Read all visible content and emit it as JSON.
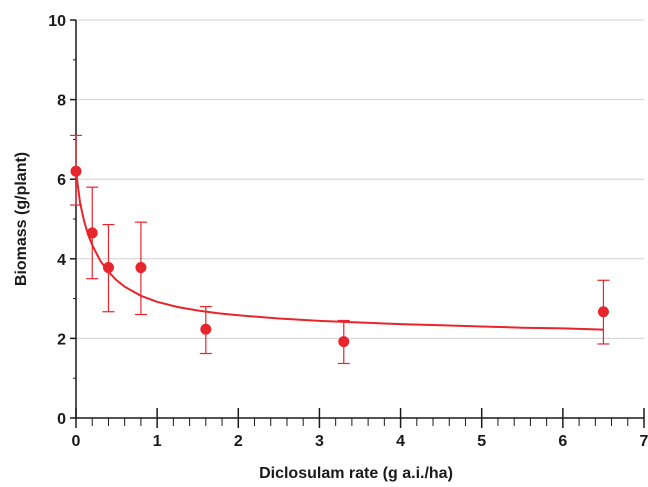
{
  "chart_data": {
    "type": "scatter",
    "title": "",
    "xlabel": "Diclosulam rate (g a.i./ha)",
    "ylabel": "Biomass (g/plant)",
    "xlim": [
      0,
      7
    ],
    "ylim": [
      0,
      10
    ],
    "x_ticks": [
      "0",
      "1",
      "2",
      "3",
      "4",
      "5",
      "6",
      "7"
    ],
    "y_ticks": [
      "0",
      "2",
      "4",
      "6",
      "8",
      "10"
    ],
    "x_minor_step": 0.2,
    "grid": "horizontal",
    "legend": "none",
    "series": [
      {
        "points": [
          {
            "x": 0.0,
            "y": 6.2,
            "err_low": 5.35,
            "err_high": 7.1
          },
          {
            "x": 0.2,
            "y": 4.65,
            "err_low": 3.5,
            "err_high": 5.8
          },
          {
            "x": 0.4,
            "y": 3.78,
            "err_low": 2.67,
            "err_high": 4.86
          },
          {
            "x": 0.8,
            "y": 3.78,
            "err_low": 2.6,
            "err_high": 4.92
          },
          {
            "x": 1.6,
            "y": 2.23,
            "err_low": 1.62,
            "err_high": 2.8
          },
          {
            "x": 3.3,
            "y": 1.92,
            "err_low": 1.37,
            "err_high": 2.45
          },
          {
            "x": 6.5,
            "y": 2.67,
            "err_low": 1.86,
            "err_high": 3.46
          }
        ],
        "fit": {
          "x": [
            0,
            0.05,
            0.1,
            0.15,
            0.2,
            0.3,
            0.4,
            0.5,
            0.6,
            0.8,
            1.0,
            1.25,
            1.5,
            1.75,
            2.0,
            2.5,
            3.0,
            3.5,
            4.0,
            4.5,
            5.0,
            5.5,
            6.0,
            6.5
          ],
          "y": [
            6.2,
            5.4,
            4.95,
            4.6,
            4.35,
            3.95,
            3.67,
            3.46,
            3.3,
            3.07,
            2.92,
            2.79,
            2.7,
            2.63,
            2.58,
            2.5,
            2.44,
            2.4,
            2.36,
            2.33,
            2.3,
            2.27,
            2.25,
            2.22
          ]
        }
      }
    ],
    "colors": {
      "series": "#e8242c",
      "axis": "#1a1a1a",
      "grid": "#d0d0d0"
    }
  }
}
